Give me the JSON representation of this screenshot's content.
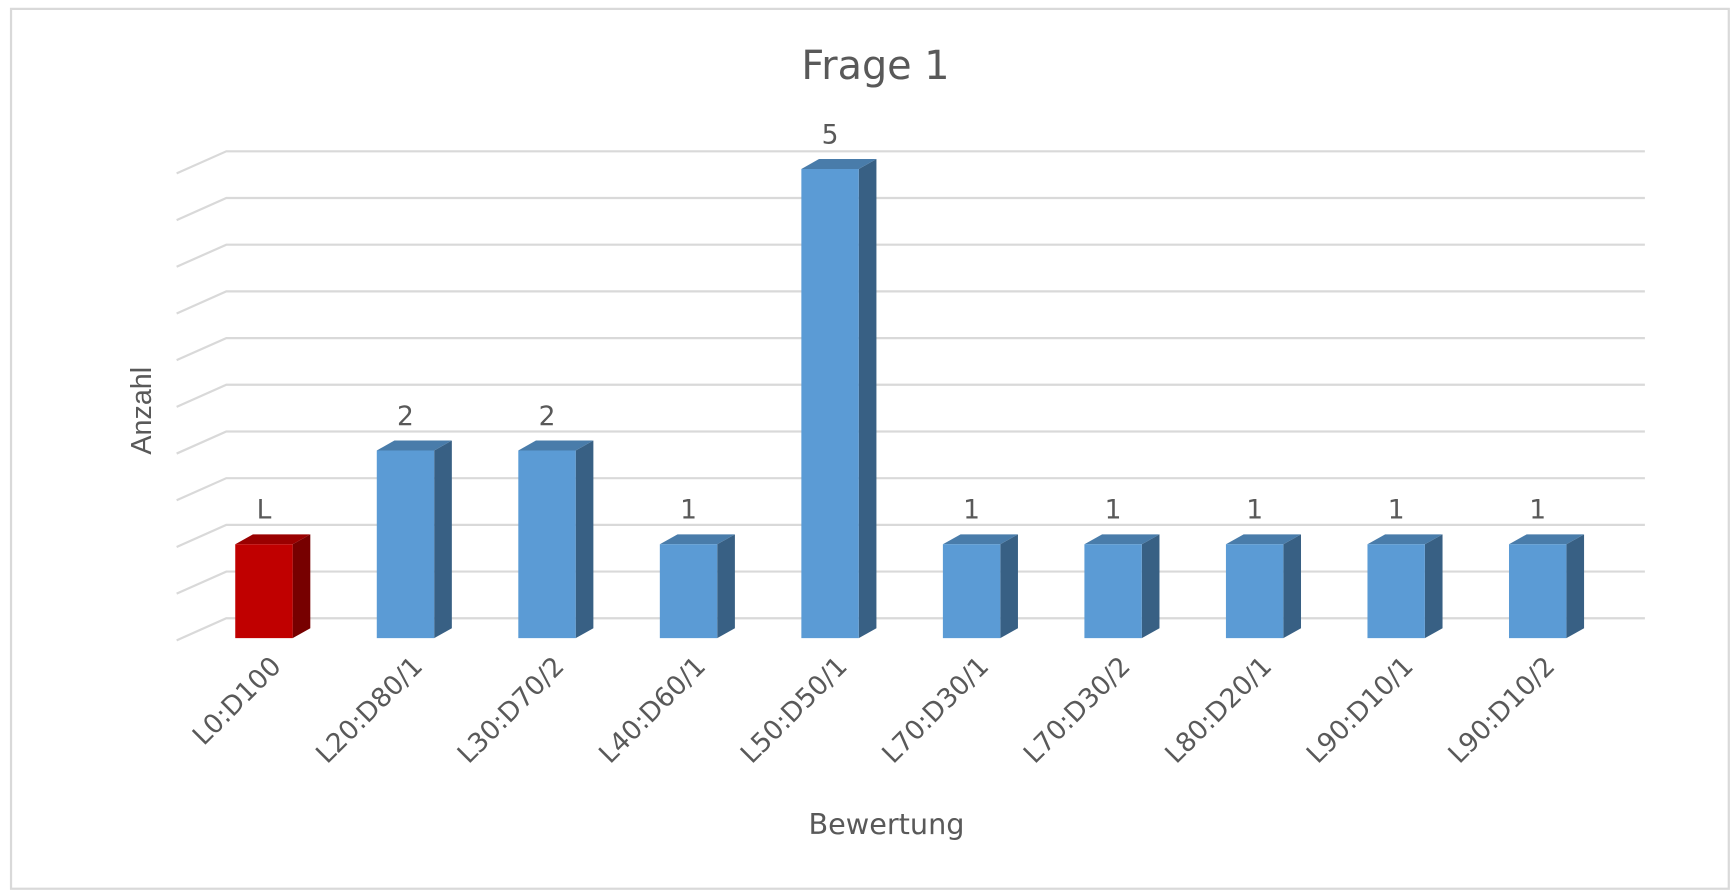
{
  "chart_data": {
    "type": "bar3d",
    "title": "Frage 1",
    "x_label": "Bewertung",
    "y_label": "Anzahl",
    "categories": [
      "L0:D100",
      "L20:D80/1",
      "L30:D70/2",
      "L40:D60/1",
      "L50:D50/1",
      "L70:D30/1",
      "L70:D30/2",
      "L80:D20/1",
      "L90:D10/1",
      "L90:D10/2"
    ],
    "values": [
      1,
      2,
      2,
      1,
      5,
      1,
      1,
      1,
      1,
      1
    ],
    "value_labels": [
      "L",
      "2",
      "2",
      "1",
      "5",
      "1",
      "1",
      "1",
      "1",
      "1"
    ],
    "colors": [
      "#c00000",
      "#5b9bd5",
      "#5b9bd5",
      "#5b9bd5",
      "#5b9bd5",
      "#5b9bd5",
      "#5b9bd5",
      "#5b9bd5",
      "#5b9bd5",
      "#5b9bd5"
    ],
    "ylim": [
      0,
      5
    ],
    "yticks": [
      0,
      0.5,
      1,
      1.5,
      2,
      2.5,
      3,
      3.5,
      4,
      4.5,
      5
    ],
    "ytick_labels": false,
    "grid": true
  }
}
